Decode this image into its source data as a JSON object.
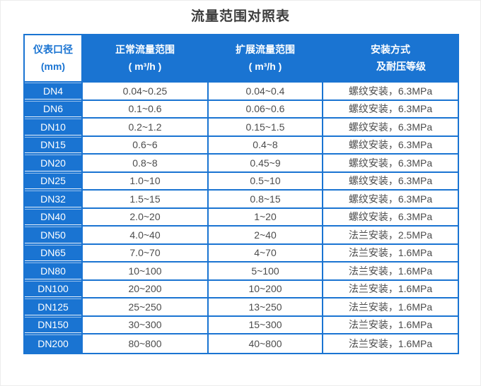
{
  "title": "流量范围对照表",
  "colors": {
    "accent_blue": "#1a74d2",
    "cell_text": "#4c4c4c",
    "title_text": "#3c3c3c"
  },
  "table": {
    "headers": [
      {
        "line1": "仪表口径",
        "line2": "(mm)"
      },
      {
        "line1": "正常流量范围",
        "line2": "( m³/h )"
      },
      {
        "line1": "扩展流量范围",
        "line2": "( m³/h )"
      },
      {
        "line1": "安装方式",
        "line2": "及耐压等级"
      }
    ],
    "rows": [
      [
        "DN4",
        "0.04~0.25",
        "0.04~0.4",
        "螺纹安装，6.3MPa"
      ],
      [
        "DN6",
        "0.1~0.6",
        "0.06~0.6",
        "螺纹安装，6.3MPa"
      ],
      [
        "DN10",
        "0.2~1.2",
        "0.15~1.5",
        "螺纹安装，6.3MPa"
      ],
      [
        "DN15",
        "0.6~6",
        "0.4~8",
        "螺纹安装，6.3MPa"
      ],
      [
        "DN20",
        "0.8~8",
        "0.45~9",
        "螺纹安装，6.3MPa"
      ],
      [
        "DN25",
        "1.0~10",
        "0.5~10",
        "螺纹安装，6.3MPa"
      ],
      [
        "DN32",
        "1.5~15",
        "0.8~15",
        "螺纹安装，6.3MPa"
      ],
      [
        "DN40",
        "2.0~20",
        "1~20",
        "螺纹安装，6.3MPa"
      ],
      [
        "DN50",
        "4.0~40",
        "2~40",
        "法兰安装，2.5MPa"
      ],
      [
        "DN65",
        "7.0~70",
        "4~70",
        "法兰安装，1.6MPa"
      ],
      [
        "DN80",
        "10~100",
        "5~100",
        "法兰安装，1.6MPa"
      ],
      [
        "DN100",
        "20~200",
        "10~200",
        "法兰安装，1.6MPa"
      ],
      [
        "DN125",
        "25~250",
        "13~250",
        "法兰安装，1.6MPa"
      ],
      [
        "DN150",
        "30~300",
        "15~300",
        "法兰安装，1.6MPa"
      ],
      [
        "DN200",
        "80~800",
        "40~800",
        "法兰安装，1.6MPa"
      ]
    ]
  }
}
